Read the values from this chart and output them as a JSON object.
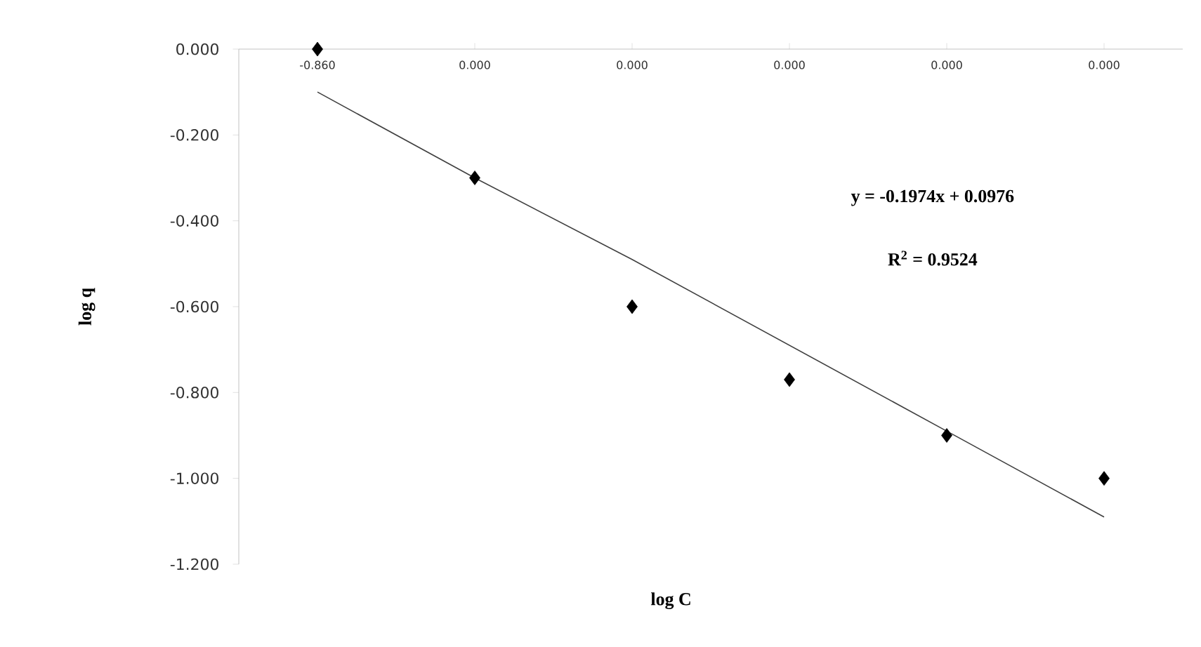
{
  "chart_data": {
    "type": "scatter",
    "xlabel": "log C",
    "ylabel": "log q",
    "categories": [
      "-0.860",
      "0.000",
      "0.000",
      "0.000",
      "0.000",
      "0.000"
    ],
    "ylim": [
      -1.2,
      0
    ],
    "yticks": [
      {
        "value": 0,
        "label": "0.000"
      },
      {
        "value": -0.2,
        "label": "-0.200"
      },
      {
        "value": -0.4,
        "label": "-0.400"
      },
      {
        "value": -0.6,
        "label": "-0.600"
      },
      {
        "value": -0.8,
        "label": "-0.800"
      },
      {
        "value": -1.0,
        "label": "-1.000"
      },
      {
        "value": -1.2,
        "label": "-1.200"
      }
    ],
    "series": [
      {
        "values": [
          0,
          -0.3,
          -0.6,
          -0.77,
          -0.9,
          -1.0
        ],
        "color": "#000000",
        "marker": "diamond"
      },
      {
        "type": "line",
        "values": [
          -0.1,
          -0.3,
          -0.49,
          -0.69,
          -0.89,
          -1.09
        ],
        "color": "#404040",
        "marker": "none"
      }
    ],
    "annotations": [
      "y = -0.1974x + 0.0976",
      "R$^{2}$ = 0.9524"
    ]
  }
}
